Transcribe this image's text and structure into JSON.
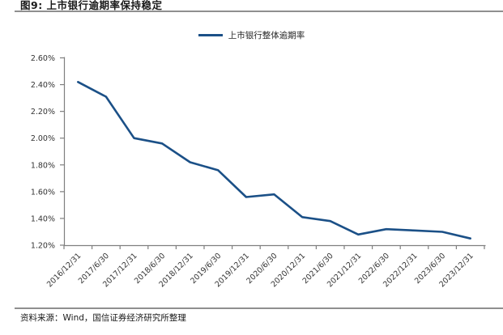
{
  "figure": {
    "source": "资料来源：Wind，国信证券经济研究所整理"
  },
  "colors": {
    "line": "#1B5087",
    "axis": "#7F7F7F",
    "tick_text": "#333333"
  },
  "chart_data": {
    "type": "line",
    "title": "图9: 上市银行逾期率保持稳定",
    "categories": [
      "2016/12/31",
      "2017/6/30",
      "2017/12/31",
      "2018/6/30",
      "2018/12/31",
      "2019/6/30",
      "2019/12/31",
      "2020/6/30",
      "2020/12/31",
      "2021/6/30",
      "2021/12/31",
      "2022/6/30",
      "2022/12/31",
      "2023/6/30",
      "2023/12/31"
    ],
    "series": [
      {
        "name": "上市银行整体逾期率",
        "values": [
          2.42,
          2.31,
          2.0,
          1.96,
          1.82,
          1.76,
          1.56,
          1.58,
          1.41,
          1.38,
          1.28,
          1.32,
          1.31,
          1.3,
          1.25
        ]
      }
    ],
    "ylabel": "",
    "xlabel": "",
    "ylim": [
      1.2,
      2.6
    ],
    "y_ticks": [
      "2.60%",
      "2.40%",
      "2.20%",
      "2.00%",
      "1.80%",
      "1.60%",
      "1.40%",
      "1.20%"
    ],
    "x_tick_rotation": -45,
    "grid": false,
    "legend_position": "top-center"
  }
}
